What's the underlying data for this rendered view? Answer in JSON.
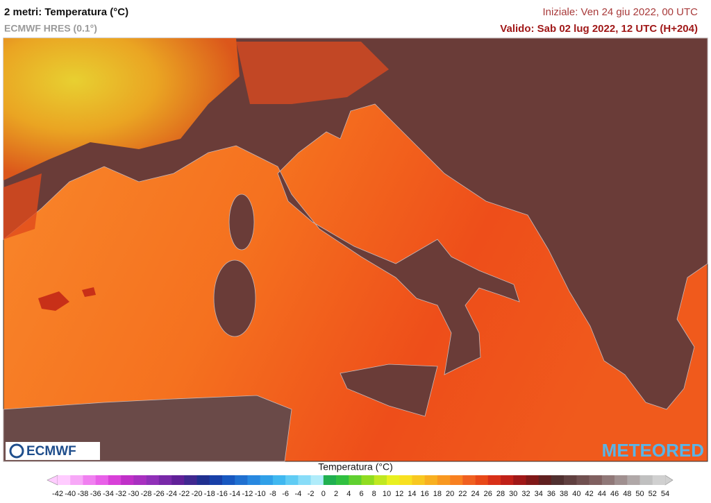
{
  "header": {
    "title": "2 metri: Temperatura (°C)",
    "subtitle": "ECMWF HRES (0.1°)",
    "initial": "Iniziale: Ven 24 giu 2022, 00 UTC",
    "valid": "Valido: Sab 02 lug 2022, 12 UTC (H+204)"
  },
  "logos": {
    "left": "ECMWF",
    "right": "METEORED"
  },
  "legend": {
    "title": "Temperatura (°C)",
    "ticks": [
      -42,
      -40,
      -38,
      -36,
      -34,
      -32,
      -30,
      -28,
      -26,
      -24,
      -22,
      -20,
      -18,
      -16,
      -14,
      -12,
      -10,
      -8,
      -6,
      -4,
      -2,
      0,
      2,
      4,
      6,
      8,
      10,
      12,
      14,
      16,
      18,
      20,
      22,
      24,
      26,
      28,
      30,
      32,
      34,
      36,
      38,
      40,
      42,
      44,
      46,
      48,
      50,
      52,
      54
    ],
    "colors": [
      "#ffccff",
      "#f7a8f7",
      "#f080f0",
      "#e860e8",
      "#d840d8",
      "#c030c8",
      "#a830c0",
      "#9030b8",
      "#7828a8",
      "#602098",
      "#402890",
      "#203090",
      "#1840a8",
      "#1858c0",
      "#2070d0",
      "#2888e0",
      "#30a0e8",
      "#40b8f0",
      "#60ccf4",
      "#88dcf8",
      "#b0ecfa",
      "#20b050",
      "#30c040",
      "#60d030",
      "#90dc20",
      "#c0e820",
      "#e8f020",
      "#f8e020",
      "#f8c820",
      "#f8b020",
      "#f89820",
      "#f88020",
      "#f06020",
      "#e84818",
      "#d83018",
      "#c02018",
      "#a01818",
      "#801818",
      "#602020",
      "#503030",
      "#604040",
      "#705050",
      "#806060",
      "#907878",
      "#a09090",
      "#b0a8a8",
      "#c0c0c0",
      "#d0d0d0"
    ]
  }
}
